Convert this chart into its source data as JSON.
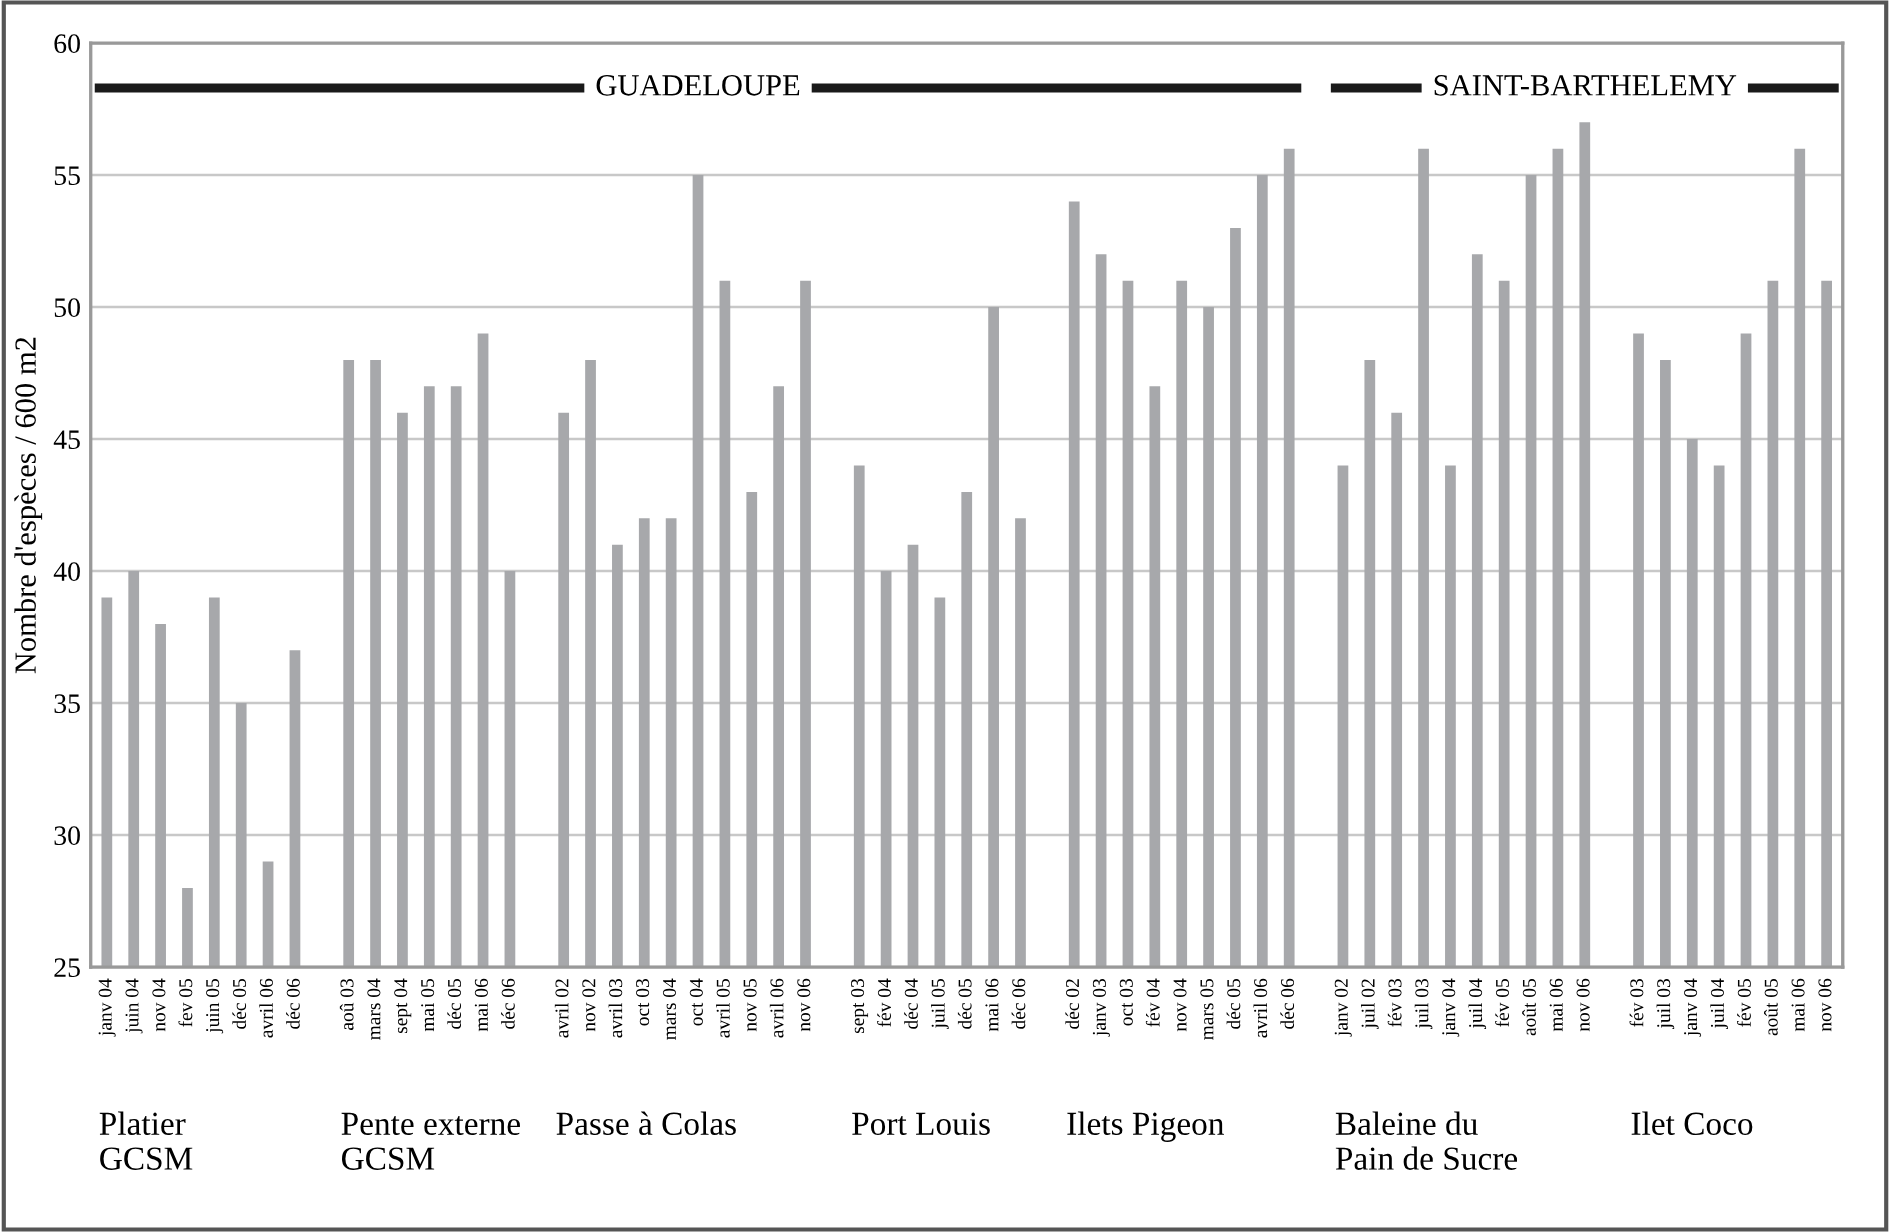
{
  "chart_data": {
    "type": "bar",
    "ylabel": "Nombre d'espèces / 600 m2",
    "categories": [
      "janv 04",
      "juin 04",
      "nov 04",
      "fev 05",
      "juin 05",
      "déc 05",
      "avril 06",
      "déc 06",
      null,
      "aoû 03",
      "mars 04",
      "sept 04",
      "mai 05",
      "déc 05",
      "mai 06",
      "déc 06",
      null,
      "avril 02",
      "nov 02",
      "avril 03",
      "oct 03",
      "mars 04",
      "oct 04",
      "avril 05",
      "nov 05",
      "avril 06",
      "nov 06",
      null,
      "sept 03",
      "fév 04",
      "déc 04",
      "juil 05",
      "déc 05",
      "mai 06",
      "déc 06",
      null,
      "déc 02",
      "janv 03",
      "oct 03",
      "fév 04",
      "nov 04",
      "mars 05",
      "déc 05",
      "avril 06",
      "déc 06",
      null,
      "janv 02",
      "juil 02",
      "fév 03",
      "juil 03",
      "janv 04",
      "juil 04",
      "fév 05",
      "août 05",
      "mai 06",
      "nov 06",
      null,
      "fév 03",
      "juil 03",
      "janv 04",
      "juil 04",
      "fév 05",
      "août 05",
      "mai 06",
      "nov 06"
    ],
    "values": [
      39,
      40,
      38,
      28,
      39,
      35,
      29,
      37,
      null,
      48,
      48,
      46,
      47,
      47,
      49,
      40,
      null,
      46,
      48,
      41,
      42,
      42,
      55,
      51,
      43,
      47,
      51,
      null,
      44,
      40,
      41,
      39,
      43,
      50,
      42,
      null,
      54,
      52,
      51,
      47,
      51,
      50,
      53,
      55,
      56,
      null,
      44,
      48,
      46,
      56,
      44,
      52,
      51,
      55,
      56,
      57,
      null,
      49,
      48,
      45,
      44,
      49,
      51,
      56,
      51
    ],
    "color": "#a7a8ab",
    "ylim": [
      25,
      60
    ],
    "yticks": [
      25,
      30,
      35,
      40,
      45,
      50,
      55,
      60
    ],
    "grid": "y",
    "annotations": [
      "Platier\nGCSM",
      "Pente externe\nGCSM",
      "Passe à Colas",
      "Port Louis",
      "Ilets Pigeon",
      "Baleine du\nPain de Sucre",
      "Ilet Coco",
      "GUADELOUPE",
      "SAINT-BARTHELEMY"
    ]
  }
}
